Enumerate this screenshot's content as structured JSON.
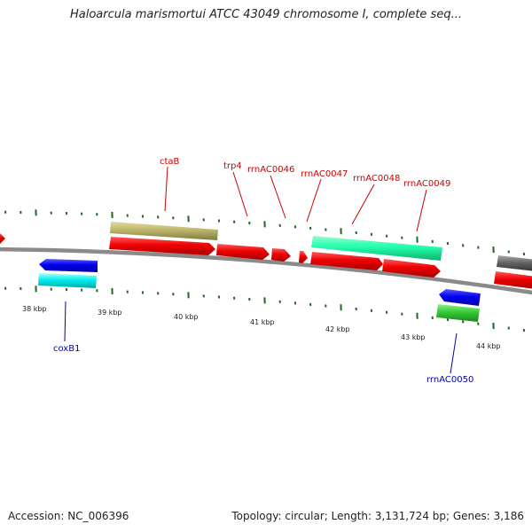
{
  "title": "Haloarcula marismortui ATCC 43049 chromosome I, complete seq...",
  "footer": {
    "accession": "Accession: NC_006396",
    "summary": "Topology: circular; Length: 3,131,724 bp; Genes: 3,186"
  },
  "scale": [
    "38 kbp",
    "39 kbp",
    "40 kbp",
    "41 kbp",
    "42 kbp",
    "43 kbp",
    "44 kbp"
  ],
  "labels": {
    "ctaB": "ctaB",
    "trp4": "trp4",
    "rrnAC0046": "rrnAC0046",
    "rrnAC0047": "rrnAC0047",
    "rrnAC0048": "rrnAC0048",
    "rrnAC0049": "rrnAC0049",
    "coxB1": "coxB1",
    "rrnAC0050": "rrnAC0050"
  },
  "colors": {
    "forward_label": "#cc0000",
    "reverse_label": "#0000aa",
    "red_feature": "#ee0000",
    "blue_feature": "#0000ee",
    "cyan_feature": "#00eeee",
    "olive_feature": "#bdb76b",
    "aquamarine_feature": "#22ffaa",
    "green_feature": "#33cc33",
    "gray_feature": "#666666",
    "tick": "#226622"
  }
}
